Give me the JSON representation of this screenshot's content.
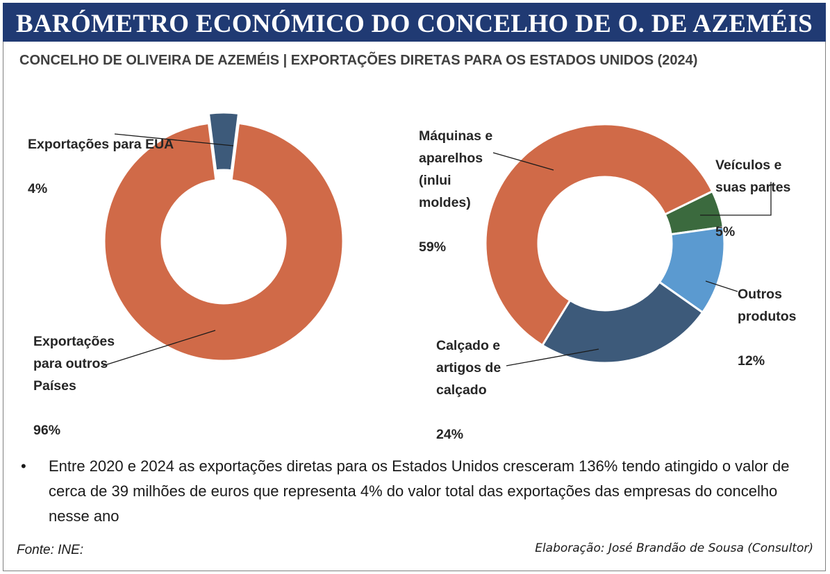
{
  "header": {
    "title": "BARÓMETRO ECONÓMICO DO CONCELHO DE O. DE AZEMÉIS",
    "subtitle": "CONCELHO DE OLIVEIRA DE AZEMÉIS | EXPORTAÇÕES DIRETAS PARA OS ESTADOS UNIDOS (2024)"
  },
  "chart_data": [
    {
      "type": "pie",
      "donut": true,
      "title": "",
      "slices": [
        {
          "label": "Exportações para EUA",
          "value": 4,
          "value_label": "4%",
          "color": "#3d5a7a",
          "exploded": true
        },
        {
          "label": "Exportações para outros Países",
          "value": 96,
          "value_label": "96%",
          "color": "#d06a48"
        }
      ]
    },
    {
      "type": "pie",
      "donut": true,
      "title": "",
      "slices": [
        {
          "label": "Veículos e suas partes",
          "value": 5,
          "value_label": "5%",
          "color": "#3b6a3e"
        },
        {
          "label": "Outros produtos",
          "value": 12,
          "value_label": "12%",
          "color": "#5b9ad0"
        },
        {
          "label": "Calçado e artigos de calçado",
          "value": 24,
          "value_label": "24%",
          "color": "#3d5a7a"
        },
        {
          "label": "Máquinas e aparelhos (inlui moldes)",
          "value": 59,
          "value_label": "59%",
          "color": "#d06a48"
        }
      ]
    }
  ],
  "labels": {
    "left_eua": "Exportações para EUA",
    "left_eua_pct": "4%",
    "left_outros": "Exportações\npara outros\nPaíses",
    "left_outros_pct": "96%",
    "maquinas": "Máquinas e\naparelhos\n(inlui\nmoldes)",
    "maquinas_pct": "59%",
    "veiculos": "Veículos e\nsuas partes",
    "veiculos_pct": "5%",
    "outros": "Outros\nprodutos",
    "outros_pct": "12%",
    "calcado": "Calçado e\nartigos de\ncalçado",
    "calcado_pct": "24%"
  },
  "note": {
    "bullet": "•",
    "text": "Entre 2020 e 2024 as exportações diretas para os Estados Unidos cresceram 136% tendo atingido o valor de cerca de 39 milhões de euros que representa 4% do valor total das exportações das empresas do concelho nesse ano"
  },
  "footer": {
    "source": "Fonte: INE:",
    "credit": "Elaboração: José Brandão de Sousa (Consultor)"
  }
}
